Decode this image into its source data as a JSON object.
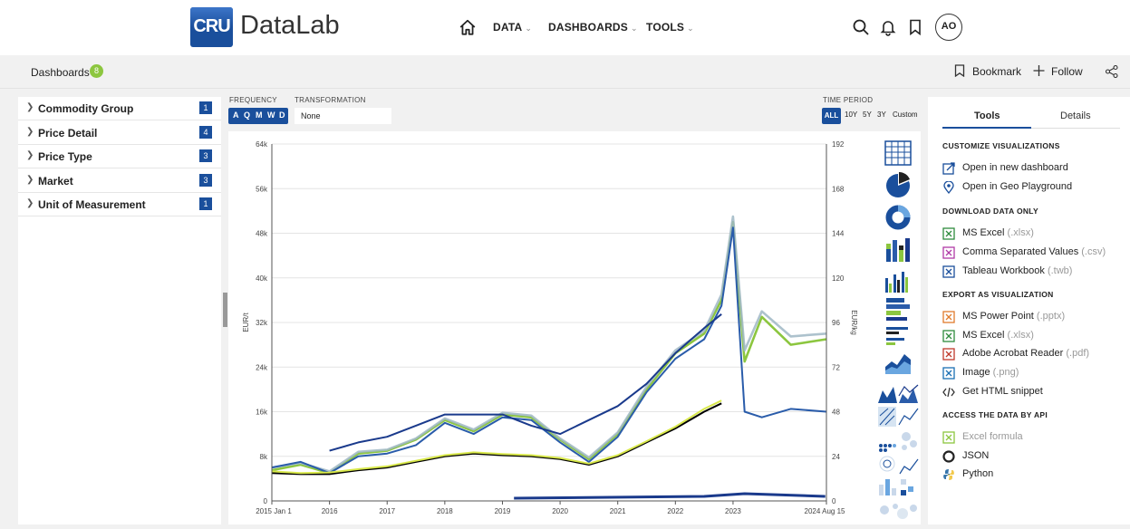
{
  "app": {
    "logo_text": "CRU",
    "title": "DataLab"
  },
  "nav": {
    "data": "DATA",
    "dashboards": "DASHBOARDS",
    "tools": "TOOLS"
  },
  "user": {
    "initials": "AO"
  },
  "subbar": {
    "crumb": "Dashboards",
    "crumb_count": "8",
    "bookmark": "Bookmark",
    "follow": "Follow"
  },
  "filters": [
    {
      "label": "Commodity Group",
      "count": "1"
    },
    {
      "label": "Price Detail",
      "count": "4"
    },
    {
      "label": "Price Type",
      "count": "3"
    },
    {
      "label": "Market",
      "count": "3"
    },
    {
      "label": "Unit of Measurement",
      "count": "1"
    }
  ],
  "controls": {
    "frequency_label": "FREQUENCY",
    "frequency_options": [
      "A",
      "Q",
      "M",
      "W",
      "D"
    ],
    "transformation_label": "TRANSFORMATION",
    "transformation_value": "None",
    "time_period_label": "TIME PERIOD",
    "time_period_options": [
      "ALL",
      "10Y",
      "5Y",
      "3Y",
      "Custom"
    ],
    "time_period_selected": "ALL"
  },
  "chart_data": {
    "type": "line",
    "title": "",
    "xlabel": "",
    "ylabel": "EUR/t",
    "y2label": "EUR/kg",
    "ylim": [
      0,
      64000
    ],
    "y2lim": [
      0,
      192
    ],
    "y_ticks": [
      "0",
      "8k",
      "16k",
      "24k",
      "32k",
      "40k",
      "48k",
      "56k",
      "64k"
    ],
    "y2_ticks": [
      "0",
      "24",
      "48",
      "72",
      "96",
      "120",
      "144",
      "168",
      "192"
    ],
    "x_ticks": [
      "2015 Jan 1",
      "2016",
      "2017",
      "2018",
      "2019",
      "2020",
      "2021",
      "2022",
      "2023",
      "2024 Aug 15"
    ],
    "grid": true,
    "x": [
      2015.0,
      2015.5,
      2016.0,
      2016.5,
      2017.0,
      2017.5,
      2018.0,
      2018.5,
      2019.0,
      2019.5,
      2020.0,
      2020.5,
      2021.0,
      2021.5,
      2022.0,
      2022.5,
      2022.8,
      2023.0,
      2023.2,
      2023.5,
      2024.0,
      2024.62
    ],
    "series": [
      {
        "color": "#8cc63f",
        "values": [
          5500,
          6500,
          5000,
          8500,
          9000,
          11000,
          14500,
          12500,
          15500,
          15000,
          11000,
          7500,
          12000,
          20000,
          26500,
          30000,
          36000,
          50000,
          25000,
          33000,
          28000,
          29000
        ]
      },
      {
        "color": "#9fb7c4",
        "values": [
          6000,
          6800,
          5300,
          8800,
          9200,
          11200,
          14800,
          12800,
          15800,
          15300,
          11200,
          7800,
          12300,
          20500,
          27000,
          30500,
          37000,
          51000,
          27000,
          34000,
          29500,
          30000
        ]
      },
      {
        "color": "#2a5caa",
        "values": [
          6000,
          7000,
          5000,
          8000,
          8500,
          10000,
          14000,
          12000,
          15000,
          14500,
          10500,
          7000,
          11500,
          19500,
          25500,
          29000,
          35000,
          49000,
          16000,
          15000,
          16500,
          16000
        ]
      },
      {
        "color": "#1a3a8c",
        "values": [
          null,
          null,
          9000,
          10500,
          11500,
          13500,
          15500,
          15500,
          15500,
          13500,
          12000,
          14500,
          17000,
          21000,
          26500,
          31000,
          33500,
          null,
          null,
          null,
          null,
          null
        ]
      },
      {
        "color": "#000000",
        "values": [
          5000,
          4800,
          4800,
          5500,
          6000,
          7000,
          8000,
          8500,
          8200,
          8000,
          7500,
          6500,
          8000,
          10500,
          13000,
          16000,
          17500,
          null,
          null,
          null,
          null,
          null
        ]
      },
      {
        "color": "#d8e84a",
        "values": [
          5300,
          5000,
          5100,
          5700,
          6200,
          7200,
          8200,
          8700,
          8400,
          8200,
          7700,
          6700,
          8200,
          10700,
          13300,
          16500,
          18000,
          null,
          null,
          null,
          null,
          null
        ]
      }
    ]
  },
  "gallery": [
    "table-view",
    "pie-chart",
    "donut-chart",
    "stacked-bar",
    "grouped-bar",
    "horizontal-stacked-bar",
    "horizontal-bar",
    "area-chart",
    "multi-area",
    "line-chart",
    "heatmap",
    "scatter",
    "dot-matrix",
    "radar",
    "bubble"
  ],
  "tools": {
    "tabs": [
      "Tools",
      "Details"
    ],
    "sections": [
      {
        "title": "CUSTOMIZE VISUALIZATIONS",
        "items": [
          {
            "label": "Open in new dashboard",
            "ext": "",
            "icon": "new-dashboard-icon",
            "color": "#1a4f9c"
          },
          {
            "label": "Open in Geo Playground",
            "ext": "",
            "icon": "map-pin-icon",
            "color": "#1a4f9c"
          }
        ]
      },
      {
        "title": "DOWNLOAD DATA ONLY",
        "items": [
          {
            "label": "MS Excel",
            "ext": " (.xlsx)",
            "icon": "excel-icon",
            "color": "#2e8b3d"
          },
          {
            "label": "Comma Separated Values",
            "ext": " (.csv)",
            "icon": "csv-icon",
            "color": "#b03aa6"
          },
          {
            "label": "Tableau Workbook",
            "ext": " (.twb)",
            "icon": "tableau-icon",
            "color": "#1a4f9c"
          }
        ]
      },
      {
        "title": "EXPORT AS VISUALIZATION",
        "items": [
          {
            "label": "MS Power Point",
            "ext": " (.pptx)",
            "icon": "powerpoint-icon",
            "color": "#e07b2c"
          },
          {
            "label": "MS Excel",
            "ext": " (.xlsx)",
            "icon": "excel-icon",
            "color": "#2e8b3d"
          },
          {
            "label": "Adobe Acrobat Reader",
            "ext": " (.pdf)",
            "icon": "pdf-icon",
            "color": "#c0392b"
          },
          {
            "label": "Image",
            "ext": " (.png)",
            "icon": "image-icon",
            "color": "#1a6fb3"
          },
          {
            "label": "Get HTML snippet",
            "ext": "",
            "icon": "code-icon",
            "color": "#333333"
          }
        ]
      },
      {
        "title": "ACCESS THE DATA BY API",
        "items": [
          {
            "label": "Excel formula",
            "ext": "",
            "icon": "excel-formula-icon",
            "color": "#8cc63f",
            "dim": true
          },
          {
            "label": "JSON",
            "ext": "",
            "icon": "json-icon",
            "color": "#222222"
          },
          {
            "label": "Python",
            "ext": "",
            "icon": "python-icon",
            "color": "#3776ab"
          }
        ]
      }
    ]
  }
}
